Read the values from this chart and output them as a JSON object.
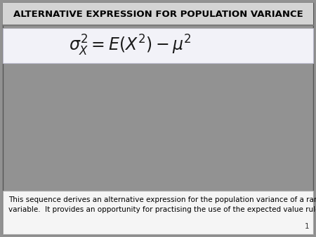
{
  "title": "ALTERNATIVE EXPRESSION FOR POPULATION VARIANCE",
  "title_fontsize": 9.5,
  "title_bg_color": "#d4d4d4",
  "main_bg_color": "#929292",
  "formula_box_bg": "#f2f2f8",
  "formula": "$\\sigma_X^2 = E\\left(X^2\\right)- \\mu^2$",
  "formula_fontsize": 17,
  "body_text": "This sequence derives an alternative expression for the population variance of a random\nvariable.  It provides an opportunity for practising the use of the expected value rules.",
  "body_fontsize": 7.5,
  "body_bg_color": "#f5f5f5",
  "page_number": "1",
  "outer_border_color": "#555555",
  "separator_color": "#7a7a7a",
  "formula_border_color": "#bbbbcc"
}
